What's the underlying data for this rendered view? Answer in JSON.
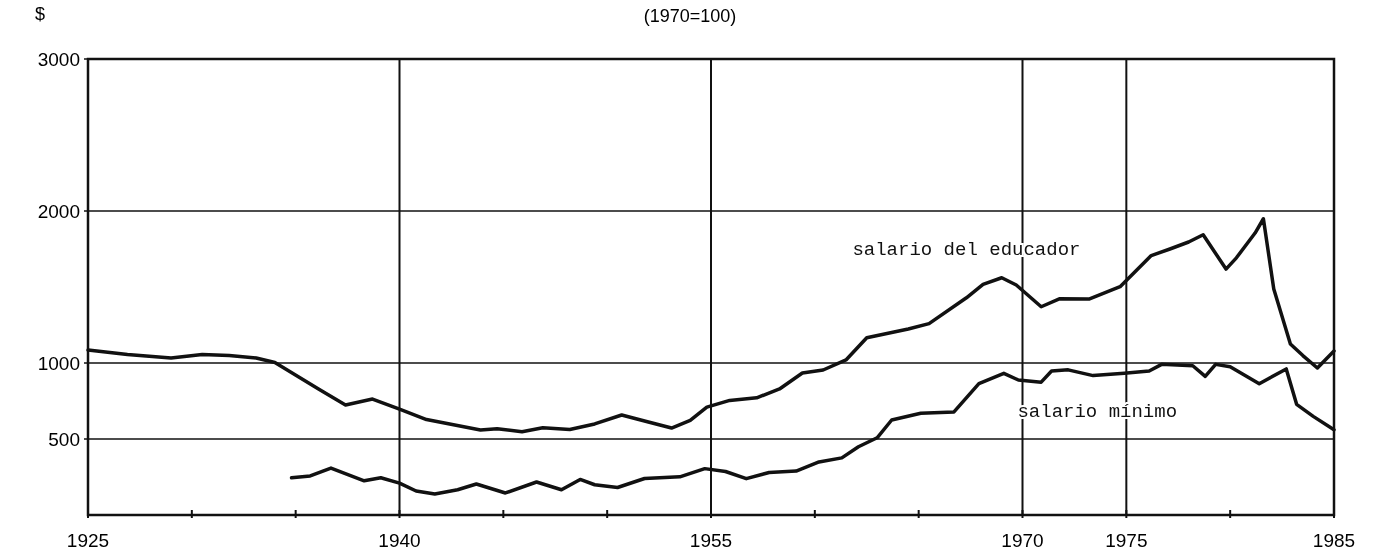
{
  "chart_data": {
    "type": "line",
    "title": "(1970=100)",
    "ylabel": "$",
    "xlim": [
      1925,
      1985
    ],
    "ylim": [
      0,
      3000
    ],
    "xticks": [
      1925,
      {
        "value": 1930,
        "label": null
      },
      {
        "value": 1935,
        "label": null
      },
      1940,
      {
        "value": 1945,
        "label": null
      },
      {
        "value": 1950,
        "label": null
      },
      1955,
      {
        "value": 1960,
        "label": null
      },
      {
        "value": 1965,
        "label": null
      },
      1970,
      1975,
      {
        "value": 1980,
        "label": null
      },
      1985
    ],
    "yticks": [
      500,
      1000,
      2000,
      3000
    ],
    "grid": true,
    "legend": false,
    "marker": "none",
    "line_style": "solid",
    "series": [
      {
        "name": "salario del educador",
        "color": "#111111",
        "x": [
          1925,
          1926.9,
          1929,
          1930.5,
          1931.8,
          1933.1,
          1934,
          1936.1,
          1937.4,
          1938.7,
          1940,
          1941.3,
          1943.9,
          1944.7,
          1945.9,
          1946.9,
          1948.2,
          1949.4,
          1950.7,
          1951.8,
          1953.1,
          1954,
          1954.8,
          1955.9,
          1957.2,
          1958.3,
          1959.4,
          1960.4,
          1961.5,
          1962.5,
          1964.5,
          1965.5,
          1967.3,
          1968.1,
          1969,
          1969.7,
          1970.9,
          1971.8,
          1973.2,
          1974.7,
          1976.2,
          1977.1,
          1978,
          1978.7,
          1979.8,
          1980.3,
          1981.2,
          1981.6,
          1982.1,
          1982.9,
          1983.5,
          1984.2,
          1985
        ],
        "values": [
          1085,
          1056,
          1033,
          1056,
          1050,
          1033,
          1003,
          829,
          724,
          763,
          697,
          628,
          559,
          568,
          548,
          574,
          562,
          599,
          658,
          618,
          572,
          622,
          710,
          754,
          771,
          829,
          934,
          954,
          1020,
          1166,
          1224,
          1259,
          1429,
          1517,
          1561,
          1513,
          1370,
          1423,
          1421,
          1502,
          1707,
          1750,
          1796,
          1844,
          1618,
          1692,
          1855,
          1949,
          1487,
          1125,
          1049,
          967,
          1079
        ]
      },
      {
        "name": "salario mínimo",
        "color": "#111111",
        "x": [
          1934.8,
          1935.7,
          1936.7,
          1938.3,
          1939.1,
          1940,
          1940.8,
          1941.7,
          1942.8,
          1943.7,
          1945.1,
          1946.6,
          1947.8,
          1948.7,
          1949.4,
          1950.5,
          1951.8,
          1953.5,
          1954.7,
          1955.7,
          1956.7,
          1957.8,
          1959.1,
          1960.2,
          1961.3,
          1962.1,
          1963,
          1963.7,
          1965.1,
          1966.7,
          1967.9,
          1969.1,
          1969.8,
          1970.9,
          1971.4,
          1972.2,
          1973.4,
          1974.9,
          1976.1,
          1976.7,
          1978.2,
          1978.8,
          1979.3,
          1980,
          1981.4,
          1982.7,
          1983.2,
          1984,
          1985
        ],
        "values": [
          245,
          257,
          309,
          225,
          245,
          210,
          158,
          138,
          166,
          204,
          145,
          217,
          166,
          234,
          199,
          181,
          240,
          251,
          305,
          286,
          239,
          280,
          289,
          349,
          376,
          449,
          508,
          625,
          669,
          678,
          864,
          932,
          888,
          874,
          947,
          955,
          917,
          932,
          947,
          991,
          982,
          912,
          991,
          976,
          864,
          961,
          728,
          649,
          561
        ]
      }
    ]
  }
}
